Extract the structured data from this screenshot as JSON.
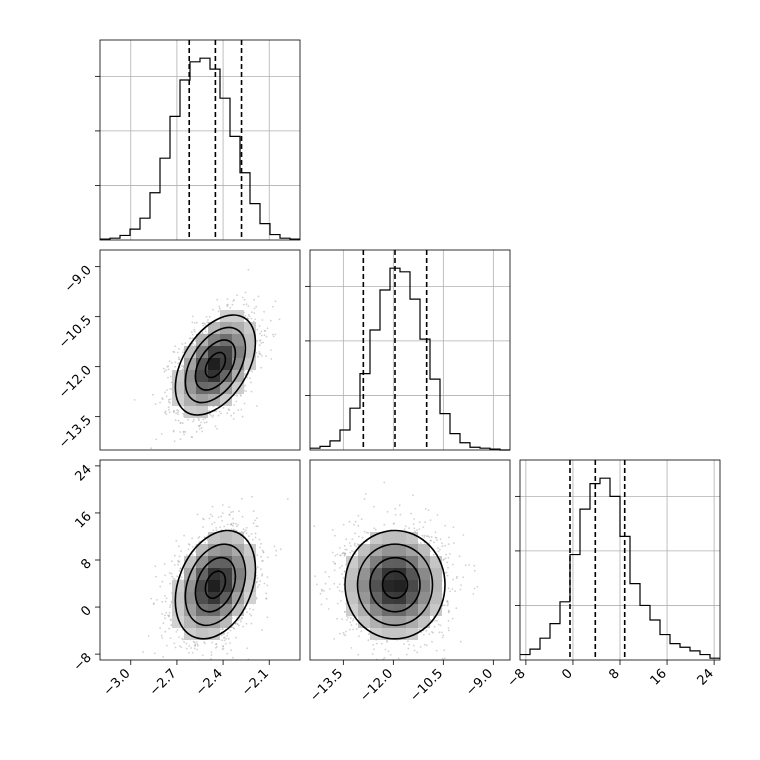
{
  "chart_data": {
    "type": "corner",
    "colors": {
      "line": "#000000",
      "grid": "#b0b0b0",
      "points": "#9a9a9a"
    },
    "grid": true,
    "parameters": [
      {
        "range": [
          -3.2,
          -1.9
        ],
        "ticks": [
          -3.0,
          -2.7,
          -2.4,
          -2.1
        ],
        "tick_labels": [
          "−3.0",
          "−2.7",
          "−2.4",
          "−2.1"
        ]
      },
      {
        "range": [
          -14.5,
          -8.5
        ],
        "ticks": [
          -13.5,
          -12.0,
          -10.5,
          -9.0
        ],
        "tick_labels": [
          "−13.5",
          "−12.0",
          "−10.5",
          "−9.0"
        ]
      },
      {
        "range": [
          -9,
          25
        ],
        "ticks": [
          -8,
          0,
          8,
          16,
          24
        ],
        "tick_labels": [
          "−8",
          "0",
          "8",
          "16",
          "24"
        ]
      }
    ],
    "histograms": [
      {
        "parameter": 0,
        "bin_edges": [
          -3.2,
          -3.135,
          -3.07,
          -3.005,
          -2.94,
          -2.875,
          -2.81,
          -2.745,
          -2.68,
          -2.615,
          -2.55,
          -2.485,
          -2.42,
          -2.355,
          -2.29,
          -2.225,
          -2.16,
          -2.095,
          -2.03,
          -1.965,
          -1.9
        ],
        "counts": [
          0.005,
          0.01,
          0.025,
          0.06,
          0.12,
          0.26,
          0.45,
          0.68,
          0.88,
          0.98,
          1.0,
          0.94,
          0.78,
          0.57,
          0.37,
          0.2,
          0.09,
          0.03,
          0.01,
          0.005
        ],
        "quantile_lines": [
          -2.62,
          -2.45,
          -2.28
        ]
      },
      {
        "parameter": 1,
        "bin_edges": [
          -14.5,
          -14.2,
          -13.9,
          -13.6,
          -13.3,
          -13.0,
          -12.7,
          -12.4,
          -12.1,
          -11.8,
          -11.5,
          -11.2,
          -10.9,
          -10.6,
          -10.3,
          -10.0,
          -9.7,
          -9.4,
          -9.1,
          -8.8,
          -8.5
        ],
        "counts": [
          0.01,
          0.02,
          0.05,
          0.11,
          0.23,
          0.42,
          0.66,
          0.88,
          1.0,
          0.98,
          0.83,
          0.61,
          0.39,
          0.2,
          0.09,
          0.04,
          0.015,
          0.01,
          0.005,
          0.0
        ],
        "quantile_lines": [
          -12.9,
          -11.95,
          -11.0
        ]
      },
      {
        "parameter": 2,
        "bin_edges": [
          -9,
          -7.3,
          -5.6,
          -3.9,
          -2.2,
          -0.5,
          1.2,
          2.9,
          4.6,
          6.3,
          8.0,
          9.7,
          11.4,
          13.1,
          14.8,
          16.5,
          18.2,
          19.9,
          21.6,
          23.3,
          25.0
        ],
        "counts": [
          0.03,
          0.06,
          0.12,
          0.2,
          0.32,
          0.58,
          0.83,
          0.97,
          1.0,
          0.9,
          0.68,
          0.42,
          0.3,
          0.22,
          0.14,
          0.09,
          0.07,
          0.05,
          0.03,
          0.01
        ],
        "quantile_lines": [
          -0.5,
          3.8,
          8.8
        ]
      }
    ],
    "joint_panels": [
      {
        "x_param": 0,
        "y_param": 1,
        "center": [
          -2.45,
          -11.95
        ],
        "sigma": [
          0.13,
          0.75
        ],
        "correlation": 0.45
      },
      {
        "x_param": 0,
        "y_param": 2,
        "center": [
          -2.45,
          3.8
        ],
        "sigma": [
          0.13,
          4.6
        ],
        "correlation": 0.3
      },
      {
        "x_param": 1,
        "y_param": 2,
        "center": [
          -11.95,
          3.8
        ],
        "sigma": [
          0.75,
          4.6
        ],
        "correlation": 0.0
      }
    ],
    "contour_levels_sigma": [
      0.5,
      1.0,
      1.5,
      2.0
    ]
  }
}
